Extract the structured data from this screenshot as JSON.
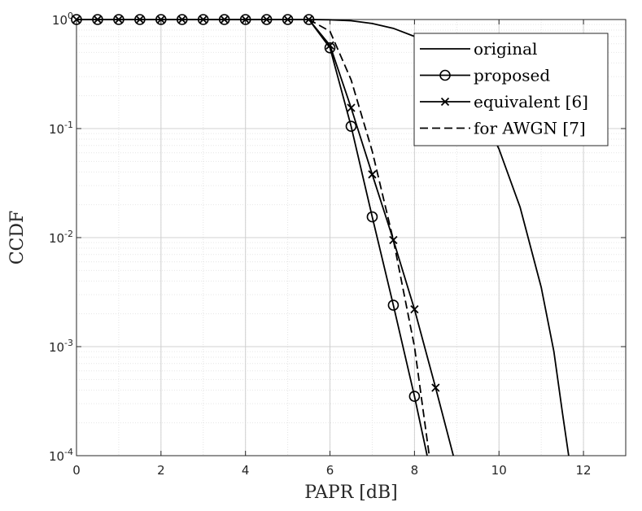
{
  "chart_data": {
    "type": "line",
    "xlabel": "PAPR [dB]",
    "ylabel": "CCDF",
    "xlim": [
      0,
      13
    ],
    "ylim": [
      0.0001,
      1
    ],
    "yscale": "log",
    "grid": "on (major and minor)",
    "legend_position": "top-right",
    "x_ticks": [
      0,
      2,
      4,
      6,
      8,
      10,
      12
    ],
    "y_ticks": [
      {
        "value": 0.0001,
        "base": "10",
        "exp": "-4"
      },
      {
        "value": 0.001,
        "base": "10",
        "exp": "-3"
      },
      {
        "value": 0.01,
        "base": "10",
        "exp": "-2"
      },
      {
        "value": 0.1,
        "base": "10",
        "exp": "-1"
      },
      {
        "value": 1,
        "base": "10",
        "exp": "0"
      }
    ],
    "series": [
      {
        "name": "original",
        "line": "solid",
        "marker": "none",
        "color": "#000000",
        "points": [
          [
            0,
            1
          ],
          [
            5.5,
            1
          ],
          [
            6,
            0.995
          ],
          [
            6.5,
            0.975
          ],
          [
            7,
            0.92
          ],
          [
            7.5,
            0.83
          ],
          [
            8,
            0.7
          ],
          [
            8.5,
            0.52
          ],
          [
            9,
            0.32
          ],
          [
            9.5,
            0.16
          ],
          [
            10,
            0.065
          ],
          [
            10.5,
            0.019
          ],
          [
            11,
            0.0035
          ],
          [
            11.3,
            0.0009
          ],
          [
            11.5,
            0.00025
          ],
          [
            11.65,
            0.0001
          ]
        ]
      },
      {
        "name": "proposed",
        "line": "solid",
        "marker": "circle",
        "color": "#000000",
        "points": [
          [
            0,
            1
          ],
          [
            0.5,
            1
          ],
          [
            1,
            1
          ],
          [
            1.5,
            1
          ],
          [
            2,
            1
          ],
          [
            2.5,
            1
          ],
          [
            3,
            1
          ],
          [
            3.5,
            1
          ],
          [
            4,
            1
          ],
          [
            4.5,
            1
          ],
          [
            5,
            1
          ],
          [
            5.5,
            1
          ],
          [
            6,
            0.55
          ],
          [
            6.5,
            0.105
          ],
          [
            7,
            0.0155
          ],
          [
            7.5,
            0.0024
          ],
          [
            8,
            0.00035
          ],
          [
            8.3,
            0.0001
          ]
        ]
      },
      {
        "name": "equivalent [6]",
        "line": "solid",
        "marker": "x",
        "color": "#000000",
        "points": [
          [
            0,
            1
          ],
          [
            0.5,
            1
          ],
          [
            1,
            1
          ],
          [
            1.5,
            1
          ],
          [
            2,
            1
          ],
          [
            2.5,
            1
          ],
          [
            3,
            1
          ],
          [
            3.5,
            1
          ],
          [
            4,
            1
          ],
          [
            4.5,
            1
          ],
          [
            5,
            1
          ],
          [
            5.5,
            1
          ],
          [
            6,
            0.58
          ],
          [
            6.5,
            0.155
          ],
          [
            7,
            0.038
          ],
          [
            7.5,
            0.0095
          ],
          [
            8,
            0.0022
          ],
          [
            8.5,
            0.00042
          ],
          [
            8.92,
            0.0001
          ]
        ]
      },
      {
        "name": "for AWGN [7]",
        "line": "dashed",
        "marker": "none",
        "color": "#000000",
        "points": [
          [
            0,
            1
          ],
          [
            5.5,
            1
          ],
          [
            6,
            0.78
          ],
          [
            6.5,
            0.28
          ],
          [
            7,
            0.062
          ],
          [
            7.5,
            0.0095
          ],
          [
            8,
            0.001
          ],
          [
            8.35,
            0.0001
          ]
        ]
      }
    ]
  }
}
